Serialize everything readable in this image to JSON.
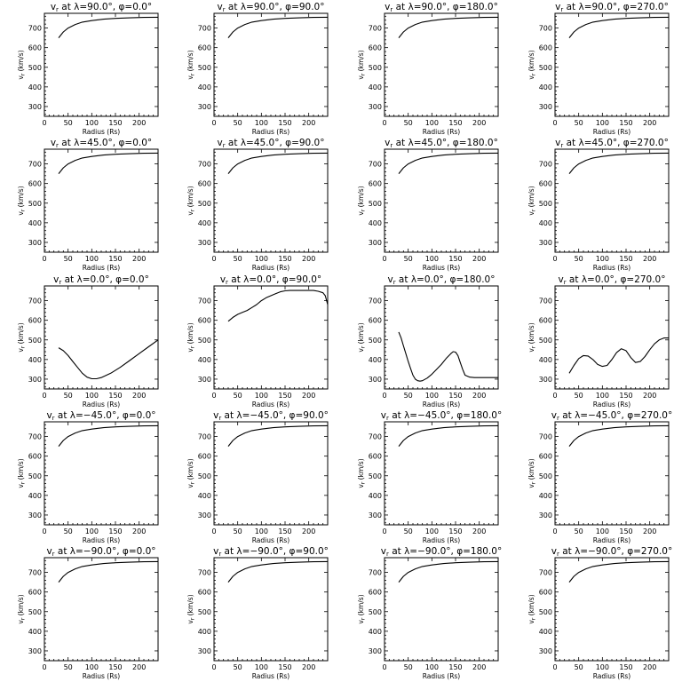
{
  "chart_data": [
    {
      "type": "line",
      "title": "v$_r$ at λ=90.0°, φ=0.0°",
      "title_var": "v",
      "title_sub": "r",
      "title_rest": " at λ=90.0°, φ=0.0°",
      "xlabel": "Radius (Rs)",
      "ylabel": "v",
      "ylabel_sub": "r",
      "ylabel_unit": "(km/s)",
      "xlim": [
        0,
        240
      ],
      "ylim": [
        250,
        775
      ],
      "xticks": [
        "0",
        "50",
        "100",
        "150",
        "200"
      ],
      "yticks": [
        "300",
        "400",
        "500",
        "600",
        "700"
      ],
      "x": [
        30,
        40,
        50,
        65,
        80,
        100,
        125,
        150,
        180,
        210,
        240
      ],
      "y": [
        650,
        680,
        700,
        718,
        730,
        738,
        745,
        749,
        752,
        754,
        755
      ]
    },
    {
      "type": "line",
      "title_var": "v",
      "title_sub": "r",
      "title_rest": " at λ=90.0°, φ=90.0°",
      "xlabel": "Radius (Rs)",
      "ylabel": "v",
      "ylabel_sub": "r",
      "ylabel_unit": "(km/s)",
      "xlim": [
        0,
        240
      ],
      "ylim": [
        250,
        775
      ],
      "xticks": [
        "0",
        "50",
        "100",
        "150",
        "200"
      ],
      "yticks": [
        "300",
        "400",
        "500",
        "600",
        "700"
      ],
      "x": [
        30,
        40,
        50,
        65,
        80,
        100,
        125,
        150,
        180,
        210,
        240
      ],
      "y": [
        650,
        680,
        700,
        718,
        730,
        738,
        745,
        749,
        752,
        754,
        755
      ]
    },
    {
      "type": "line",
      "title_var": "v",
      "title_sub": "r",
      "title_rest": " at λ=90.0°, φ=180.0°",
      "xlabel": "Radius (Rs)",
      "ylabel": "v",
      "ylabel_sub": "r",
      "ylabel_unit": "(km/s)",
      "xlim": [
        0,
        240
      ],
      "ylim": [
        250,
        775
      ],
      "xticks": [
        "0",
        "50",
        "100",
        "150",
        "200"
      ],
      "yticks": [
        "300",
        "400",
        "500",
        "600",
        "700"
      ],
      "x": [
        30,
        40,
        50,
        65,
        80,
        100,
        125,
        150,
        180,
        210,
        240
      ],
      "y": [
        650,
        680,
        700,
        718,
        730,
        738,
        745,
        749,
        752,
        754,
        755
      ]
    },
    {
      "type": "line",
      "title_var": "v",
      "title_sub": "r",
      "title_rest": " at λ=90.0°, φ=270.0°",
      "xlabel": "Radius (Rs)",
      "ylabel": "v",
      "ylabel_sub": "r",
      "ylabel_unit": "(km/s)",
      "xlim": [
        0,
        240
      ],
      "ylim": [
        250,
        775
      ],
      "xticks": [
        "0",
        "50",
        "100",
        "150",
        "200"
      ],
      "yticks": [
        "300",
        "400",
        "500",
        "600",
        "700"
      ],
      "x": [
        30,
        40,
        50,
        65,
        80,
        100,
        125,
        150,
        180,
        210,
        240
      ],
      "y": [
        650,
        680,
        700,
        718,
        730,
        738,
        745,
        749,
        752,
        754,
        755
      ]
    },
    {
      "type": "line",
      "title_var": "v",
      "title_sub": "r",
      "title_rest": " at λ=45.0°, φ=0.0°",
      "xlabel": "Radius (Rs)",
      "ylabel": "v",
      "ylabel_sub": "r",
      "ylabel_unit": "(km/s)",
      "xlim": [
        0,
        240
      ],
      "ylim": [
        250,
        775
      ],
      "xticks": [
        "0",
        "50",
        "100",
        "150",
        "200"
      ],
      "yticks": [
        "300",
        "400",
        "500",
        "600",
        "700"
      ],
      "x": [
        30,
        40,
        50,
        65,
        80,
        100,
        125,
        150,
        180,
        210,
        240
      ],
      "y": [
        650,
        680,
        700,
        718,
        730,
        738,
        745,
        749,
        752,
        754,
        755
      ]
    },
    {
      "type": "line",
      "title_var": "v",
      "title_sub": "r",
      "title_rest": " at λ=45.0°, φ=90.0°",
      "xlabel": "Radius (Rs)",
      "ylabel": "v",
      "ylabel_sub": "r",
      "ylabel_unit": "(km/s)",
      "xlim": [
        0,
        240
      ],
      "ylim": [
        250,
        775
      ],
      "xticks": [
        "0",
        "50",
        "100",
        "150",
        "200"
      ],
      "yticks": [
        "300",
        "400",
        "500",
        "600",
        "700"
      ],
      "x": [
        30,
        40,
        50,
        65,
        80,
        100,
        125,
        150,
        180,
        210,
        240
      ],
      "y": [
        650,
        680,
        700,
        718,
        730,
        738,
        745,
        749,
        752,
        754,
        755
      ]
    },
    {
      "type": "line",
      "title_var": "v",
      "title_sub": "r",
      "title_rest": " at λ=45.0°, φ=180.0°",
      "xlabel": "Radius (Rs)",
      "ylabel": "v",
      "ylabel_sub": "r",
      "ylabel_unit": "(km/s)",
      "xlim": [
        0,
        240
      ],
      "ylim": [
        250,
        775
      ],
      "xticks": [
        "0",
        "50",
        "100",
        "150",
        "200"
      ],
      "yticks": [
        "300",
        "400",
        "500",
        "600",
        "700"
      ],
      "x": [
        30,
        40,
        50,
        65,
        80,
        100,
        125,
        150,
        180,
        210,
        240
      ],
      "y": [
        650,
        680,
        700,
        718,
        730,
        738,
        745,
        749,
        752,
        754,
        755
      ]
    },
    {
      "type": "line",
      "title_var": "v",
      "title_sub": "r",
      "title_rest": " at λ=45.0°, φ=270.0°",
      "xlabel": "Radius (Rs)",
      "ylabel": "v",
      "ylabel_sub": "r",
      "ylabel_unit": "(km/s)",
      "xlim": [
        0,
        240
      ],
      "ylim": [
        250,
        775
      ],
      "xticks": [
        "0",
        "50",
        "100",
        "150",
        "200"
      ],
      "yticks": [
        "300",
        "400",
        "500",
        "600",
        "700"
      ],
      "x": [
        30,
        40,
        50,
        65,
        80,
        100,
        125,
        150,
        180,
        210,
        240
      ],
      "y": [
        650,
        680,
        700,
        718,
        730,
        738,
        745,
        749,
        752,
        754,
        755
      ]
    },
    {
      "type": "line",
      "title_var": "v",
      "title_sub": "r",
      "title_rest": " at λ=0.0°, φ=0.0°",
      "xlabel": "Radius (Rs)",
      "ylabel": "v",
      "ylabel_sub": "r",
      "ylabel_unit": "(km/s)",
      "xlim": [
        0,
        240
      ],
      "ylim": [
        250,
        775
      ],
      "xticks": [
        "0",
        "50",
        "100",
        "150",
        "200"
      ],
      "yticks": [
        "300",
        "400",
        "500",
        "600",
        "700"
      ],
      "x": [
        30,
        40,
        50,
        60,
        70,
        80,
        90,
        100,
        110,
        120,
        140,
        160,
        180,
        200,
        220,
        240
      ],
      "y": [
        460,
        445,
        420,
        390,
        360,
        330,
        310,
        302,
        302,
        308,
        330,
        360,
        395,
        430,
        465,
        500
      ]
    },
    {
      "type": "line",
      "title_var": "v",
      "title_sub": "r",
      "title_rest": " at λ=0.0°, φ=90.0°",
      "xlabel": "Radius (Rs)",
      "ylabel": "v",
      "ylabel_sub": "r",
      "ylabel_unit": "(km/s)",
      "xlim": [
        0,
        240
      ],
      "ylim": [
        250,
        775
      ],
      "xticks": [
        "0",
        "50",
        "100",
        "150",
        "200"
      ],
      "yticks": [
        "300",
        "400",
        "500",
        "600",
        "700"
      ],
      "x": [
        30,
        40,
        50,
        60,
        70,
        80,
        90,
        100,
        110,
        120,
        130,
        140,
        150,
        160,
        170,
        180,
        190,
        200,
        210,
        220,
        230,
        235,
        240
      ],
      "y": [
        595,
        615,
        630,
        640,
        650,
        665,
        680,
        700,
        715,
        725,
        735,
        745,
        750,
        752,
        752,
        752,
        752,
        752,
        752,
        748,
        740,
        725,
        680
      ]
    },
    {
      "type": "line",
      "title_var": "v",
      "title_sub": "r",
      "title_rest": " at λ=0.0°, φ=180.0°",
      "xlabel": "Radius (Rs)",
      "ylabel": "v",
      "ylabel_sub": "r",
      "ylabel_unit": "(km/s)",
      "xlim": [
        0,
        240
      ],
      "ylim": [
        250,
        775
      ],
      "xticks": [
        "0",
        "50",
        "100",
        "150",
        "200"
      ],
      "yticks": [
        "300",
        "400",
        "500",
        "600",
        "700"
      ],
      "x": [
        30,
        35,
        40,
        45,
        50,
        55,
        60,
        65,
        70,
        75,
        80,
        90,
        100,
        110,
        120,
        130,
        140,
        145,
        150,
        155,
        160,
        165,
        170,
        180,
        190,
        200,
        220,
        240
      ],
      "y": [
        540,
        510,
        470,
        430,
        390,
        355,
        320,
        300,
        292,
        290,
        292,
        305,
        325,
        350,
        375,
        405,
        430,
        440,
        438,
        420,
        385,
        350,
        320,
        310,
        308,
        308,
        308,
        308
      ]
    },
    {
      "type": "line",
      "title_var": "v",
      "title_sub": "r",
      "title_rest": " at λ=0.0°, φ=270.0°",
      "xlabel": "Radius (Rs)",
      "ylabel": "v",
      "ylabel_sub": "r",
      "ylabel_unit": "(km/s)",
      "xlim": [
        0,
        240
      ],
      "ylim": [
        250,
        775
      ],
      "xticks": [
        "0",
        "50",
        "100",
        "150",
        "200"
      ],
      "yticks": [
        "300",
        "400",
        "500",
        "600",
        "700"
      ],
      "x": [
        30,
        40,
        50,
        60,
        70,
        80,
        90,
        100,
        110,
        120,
        130,
        140,
        150,
        160,
        170,
        180,
        190,
        200,
        210,
        220,
        230,
        240
      ],
      "y": [
        330,
        370,
        405,
        420,
        418,
        400,
        375,
        365,
        370,
        400,
        435,
        455,
        445,
        410,
        385,
        390,
        415,
        450,
        480,
        500,
        510,
        510
      ]
    },
    {
      "type": "line",
      "title_var": "v",
      "title_sub": "r",
      "title_rest": " at λ=−45.0°, φ=0.0°",
      "xlabel": "Radius (Rs)",
      "ylabel": "v",
      "ylabel_sub": "r",
      "ylabel_unit": "(km/s)",
      "xlim": [
        0,
        240
      ],
      "ylim": [
        250,
        775
      ],
      "xticks": [
        "0",
        "50",
        "100",
        "150",
        "200"
      ],
      "yticks": [
        "300",
        "400",
        "500",
        "600",
        "700"
      ],
      "x": [
        30,
        40,
        50,
        65,
        80,
        100,
        125,
        150,
        180,
        210,
        240
      ],
      "y": [
        650,
        680,
        700,
        718,
        730,
        738,
        745,
        749,
        752,
        754,
        755
      ]
    },
    {
      "type": "line",
      "title_var": "v",
      "title_sub": "r",
      "title_rest": " at λ=−45.0°, φ=90.0°",
      "xlabel": "Radius (Rs)",
      "ylabel": "v",
      "ylabel_sub": "r",
      "ylabel_unit": "(km/s)",
      "xlim": [
        0,
        240
      ],
      "ylim": [
        250,
        775
      ],
      "xticks": [
        "0",
        "50",
        "100",
        "150",
        "200"
      ],
      "yticks": [
        "300",
        "400",
        "500",
        "600",
        "700"
      ],
      "x": [
        30,
        40,
        50,
        65,
        80,
        100,
        125,
        150,
        180,
        210,
        240
      ],
      "y": [
        650,
        680,
        700,
        718,
        730,
        738,
        745,
        749,
        752,
        754,
        755
      ]
    },
    {
      "type": "line",
      "title_var": "v",
      "title_sub": "r",
      "title_rest": " at λ=−45.0°, φ=180.0°",
      "xlabel": "Radius (Rs)",
      "ylabel": "v",
      "ylabel_sub": "r",
      "ylabel_unit": "(km/s)",
      "xlim": [
        0,
        240
      ],
      "ylim": [
        250,
        775
      ],
      "xticks": [
        "0",
        "50",
        "100",
        "150",
        "200"
      ],
      "yticks": [
        "300",
        "400",
        "500",
        "600",
        "700"
      ],
      "x": [
        30,
        40,
        50,
        65,
        80,
        100,
        125,
        150,
        180,
        210,
        240
      ],
      "y": [
        650,
        680,
        700,
        718,
        730,
        738,
        745,
        749,
        752,
        754,
        755
      ]
    },
    {
      "type": "line",
      "title_var": "v",
      "title_sub": "r",
      "title_rest": " at λ=−45.0°, φ=270.0°",
      "xlabel": "Radius (Rs)",
      "ylabel": "v",
      "ylabel_sub": "r",
      "ylabel_unit": "(km/s)",
      "xlim": [
        0,
        240
      ],
      "ylim": [
        250,
        775
      ],
      "xticks": [
        "0",
        "50",
        "100",
        "150",
        "200"
      ],
      "yticks": [
        "300",
        "400",
        "500",
        "600",
        "700"
      ],
      "x": [
        30,
        40,
        50,
        65,
        80,
        100,
        125,
        150,
        180,
        210,
        240
      ],
      "y": [
        650,
        680,
        700,
        718,
        730,
        738,
        745,
        749,
        752,
        754,
        755
      ]
    },
    {
      "type": "line",
      "title_var": "v",
      "title_sub": "r",
      "title_rest": " at λ=−90.0°, φ=0.0°",
      "xlabel": "Radius (Rs)",
      "ylabel": "v",
      "ylabel_sub": "r",
      "ylabel_unit": "(km/s)",
      "xlim": [
        0,
        240
      ],
      "ylim": [
        250,
        775
      ],
      "xticks": [
        "0",
        "50",
        "100",
        "150",
        "200"
      ],
      "yticks": [
        "300",
        "400",
        "500",
        "600",
        "700"
      ],
      "x": [
        30,
        40,
        50,
        65,
        80,
        100,
        125,
        150,
        180,
        210,
        240
      ],
      "y": [
        650,
        680,
        700,
        718,
        730,
        738,
        745,
        749,
        752,
        754,
        755
      ]
    },
    {
      "type": "line",
      "title_var": "v",
      "title_sub": "r",
      "title_rest": " at λ=−90.0°, φ=90.0°",
      "xlabel": "Radius (Rs)",
      "ylabel": "v",
      "ylabel_sub": "r",
      "ylabel_unit": "(km/s)",
      "xlim": [
        0,
        240
      ],
      "ylim": [
        250,
        775
      ],
      "xticks": [
        "0",
        "50",
        "100",
        "150",
        "200"
      ],
      "yticks": [
        "300",
        "400",
        "500",
        "600",
        "700"
      ],
      "x": [
        30,
        40,
        50,
        65,
        80,
        100,
        125,
        150,
        180,
        210,
        240
      ],
      "y": [
        650,
        680,
        700,
        718,
        730,
        738,
        745,
        749,
        752,
        754,
        755
      ]
    },
    {
      "type": "line",
      "title_var": "v",
      "title_sub": "r",
      "title_rest": " at λ=−90.0°, φ=180.0°",
      "xlabel": "Radius (Rs)",
      "ylabel": "v",
      "ylabel_sub": "r",
      "ylabel_unit": "(km/s)",
      "xlim": [
        0,
        240
      ],
      "ylim": [
        250,
        775
      ],
      "xticks": [
        "0",
        "50",
        "100",
        "150",
        "200"
      ],
      "yticks": [
        "300",
        "400",
        "500",
        "600",
        "700"
      ],
      "x": [
        30,
        40,
        50,
        65,
        80,
        100,
        125,
        150,
        180,
        210,
        240
      ],
      "y": [
        650,
        680,
        700,
        718,
        730,
        738,
        745,
        749,
        752,
        754,
        755
      ]
    },
    {
      "type": "line",
      "title_var": "v",
      "title_sub": "r",
      "title_rest": " at λ=−90.0°, φ=270.0°",
      "xlabel": "Radius (Rs)",
      "ylabel": "v",
      "ylabel_sub": "r",
      "ylabel_unit": "(km/s)",
      "xlim": [
        0,
        240
      ],
      "ylim": [
        250,
        775
      ],
      "xticks": [
        "0",
        "50",
        "100",
        "150",
        "200"
      ],
      "yticks": [
        "300",
        "400",
        "500",
        "600",
        "700"
      ],
      "x": [
        30,
        40,
        50,
        65,
        80,
        100,
        125,
        150,
        180,
        210,
        240
      ],
      "y": [
        650,
        680,
        700,
        718,
        730,
        738,
        745,
        749,
        752,
        754,
        755
      ]
    }
  ]
}
